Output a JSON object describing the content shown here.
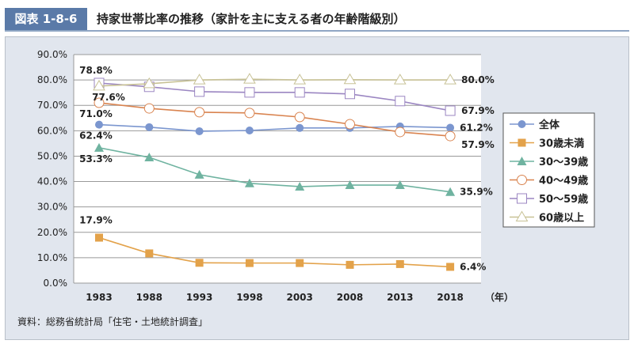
{
  "header": {
    "label": "図表 1-8-6",
    "title": "持家世帯比率の推移（家計を主に支える者の年齢階級別）"
  },
  "source": "資料：総務省統計局「住宅・土地統計調査」",
  "chart_data": {
    "type": "line",
    "categories": [
      "1983",
      "1988",
      "1993",
      "1998",
      "2003",
      "2008",
      "2013",
      "2018"
    ],
    "x_unit": "（年）",
    "ylim": [
      0,
      90
    ],
    "yticks": [
      "0.0%",
      "10.0%",
      "20.0%",
      "30.0%",
      "40.0%",
      "50.0%",
      "60.0%",
      "70.0%",
      "80.0%",
      "90.0%"
    ],
    "grid": true,
    "legend": "right",
    "series": [
      {
        "name": "全体",
        "color": "#7b96cf",
        "marker": "circle",
        "values": [
          62.4,
          61.4,
          59.8,
          60.1,
          61.1,
          61.1,
          61.7,
          61.2
        ],
        "labels": {
          "first": "62.4%",
          "last": "61.2%"
        }
      },
      {
        "name": "30歳未満",
        "color": "#e3a24a",
        "marker": "square",
        "values": [
          17.9,
          11.7,
          8.0,
          7.9,
          7.9,
          7.2,
          7.5,
          6.4
        ],
        "labels": {
          "first": "17.9%",
          "last": "6.4%"
        }
      },
      {
        "name": "30～39歳",
        "color": "#6fb3a0",
        "marker": "triangle",
        "values": [
          53.3,
          49.5,
          42.7,
          39.3,
          38.0,
          38.6,
          38.6,
          35.9
        ],
        "labels": {
          "first": "53.3%",
          "last": "35.9%"
        }
      },
      {
        "name": "40～49歳",
        "color": "#d9834f",
        "marker": "open-circle",
        "values": [
          71.0,
          68.8,
          67.3,
          67.0,
          65.4,
          62.6,
          59.5,
          57.9
        ],
        "labels": {
          "first": "71.0%",
          "last": "57.9%"
        }
      },
      {
        "name": "50～59歳",
        "color": "#9b86c2",
        "marker": "open-square",
        "values": [
          78.8,
          77.3,
          75.4,
          75.1,
          75.1,
          74.5,
          71.7,
          67.9
        ],
        "labels": {
          "first": "78.8%",
          "last": "67.9%"
        }
      },
      {
        "name": "60歳以上",
        "color": "#c8c296",
        "marker": "open-triangle",
        "values": [
          77.6,
          78.5,
          80.0,
          80.3,
          80.0,
          80.1,
          80.0,
          80.0
        ],
        "labels": {
          "first": "77.6%",
          "last": "80.0%"
        }
      }
    ]
  }
}
